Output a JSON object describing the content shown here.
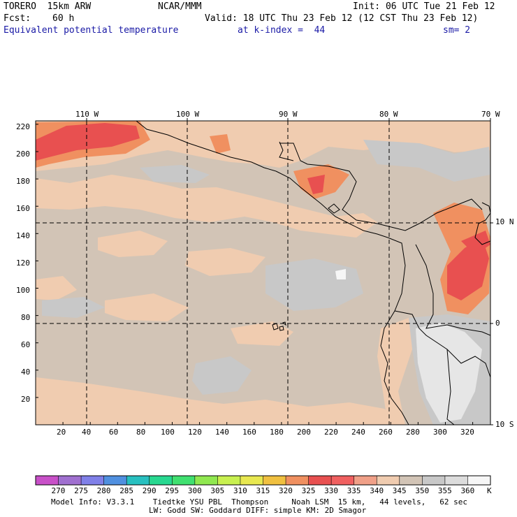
{
  "header": {
    "model": "TORERO  15km ARW",
    "center": "NCAR/MMM",
    "init": "Init: 06 UTC Tue 21 Feb 12",
    "fcst_label": "Fcst:",
    "fcst_value": "60 h",
    "valid": "Valid: 18 UTC Thu 23 Feb 12 (12 CST Thu 23 Feb 12)",
    "field": "Equivalent potential temperature",
    "level": "at k-index =  44",
    "smoothing": "sm= 2"
  },
  "map": {
    "lon_labels": [
      "110 W",
      "100 W",
      "90 W",
      "80 W",
      "70 W"
    ],
    "lat_labels": [
      "10 N",
      "0",
      "10 S"
    ],
    "x_ticks": [
      "20",
      "40",
      "60",
      "80",
      "100",
      "120",
      "140",
      "160",
      "180",
      "200",
      "220",
      "240",
      "260",
      "280",
      "300",
      "320"
    ],
    "y_ticks": [
      "20",
      "40",
      "60",
      "80",
      "100",
      "120",
      "140",
      "160",
      "180",
      "200",
      "220"
    ]
  },
  "colorbar": {
    "labels": [
      "270",
      "275",
      "280",
      "285",
      "290",
      "295",
      "300",
      "305",
      "310",
      "315",
      "320",
      "325",
      "330",
      "335",
      "340",
      "345",
      "350",
      "355",
      "360"
    ],
    "unit": "K",
    "colors": [
      "#c850c8",
      "#a070d0",
      "#8080e8",
      "#5090e0",
      "#28c0c0",
      "#28d890",
      "#40e070",
      "#90e850",
      "#c8f050",
      "#e8e850",
      "#f0c040",
      "#f09060",
      "#e85050",
      "#f06060",
      "#f0a088",
      "#f0ccb0",
      "#d2c4b6",
      "#c8c8c8",
      "#dcdcdc",
      "#f6f6f6"
    ]
  },
  "footer": {
    "line1": "Model Info: V3.3.1    Tiedtke YSU PBL  Thompson     Noah LSM  15 km,   44 levels,   62 sec",
    "line2": "LW: Godd SW: Goddard DIFF: simple KM: 2D Smagor"
  }
}
